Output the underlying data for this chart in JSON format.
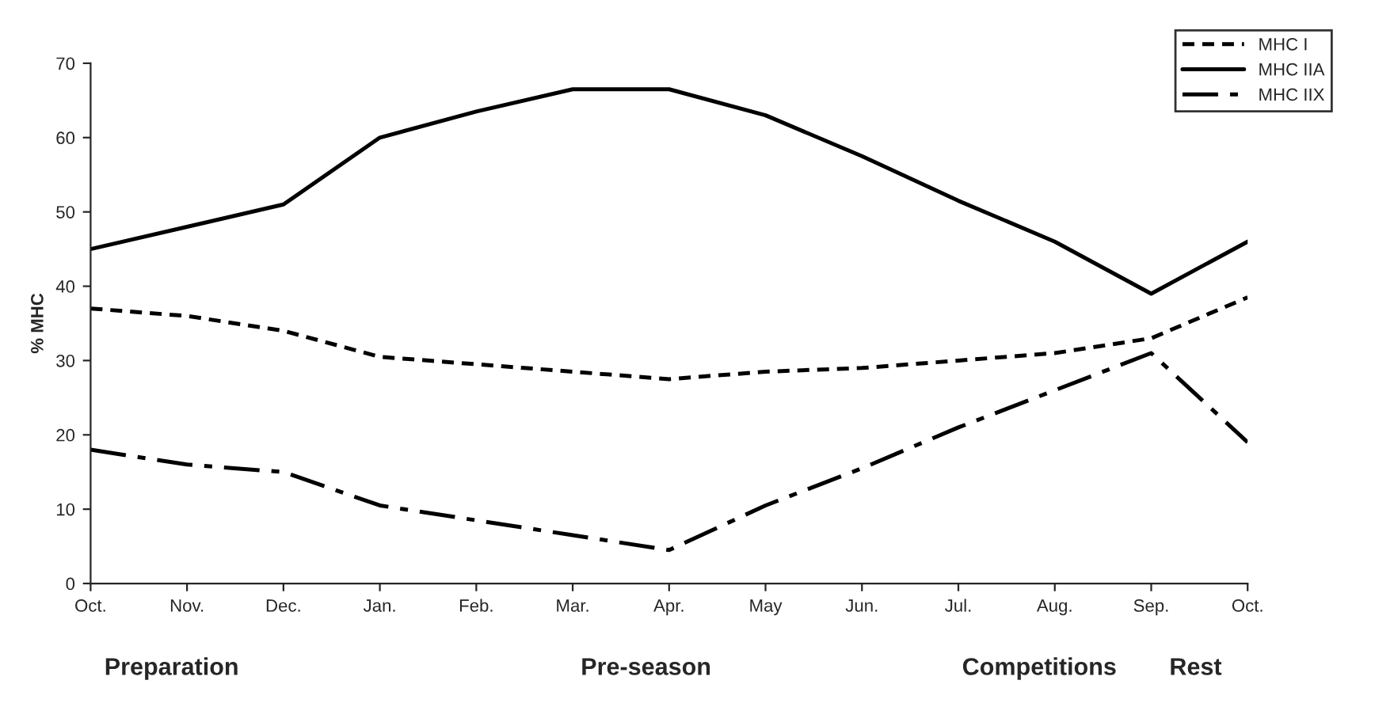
{
  "chart_data": {
    "type": "line",
    "ylabel": "% MHC",
    "categories": [
      "Oct.",
      "Nov.",
      "Dec.",
      "Jan.",
      "Feb.",
      "Mar.",
      "Apr.",
      "May",
      "Jun.",
      "Jul.",
      "Aug.",
      "Sep.",
      "Oct."
    ],
    "series": [
      {
        "name": "MHC I",
        "color": "#000000",
        "line_style": "dotted",
        "values": [
          37,
          36,
          34,
          30.5,
          29.5,
          28.5,
          27.5,
          28.5,
          29,
          30,
          31,
          33,
          38.5
        ]
      },
      {
        "name": "MHC IIA",
        "color": "#000000",
        "line_style": "solid",
        "values": [
          45,
          48,
          51,
          60,
          63.5,
          66.5,
          66.5,
          63,
          57.5,
          51.5,
          46,
          39,
          46
        ]
      },
      {
        "name": "MHC IIX",
        "color": "#000000",
        "line_style": "dashed",
        "values": [
          18,
          16,
          15,
          10.5,
          8.5,
          6.5,
          4.5,
          10.5,
          15.5,
          21,
          26,
          31,
          19
        ]
      }
    ],
    "ylim": [
      0,
      70
    ],
    "yticks": [
      0,
      10,
      20,
      30,
      40,
      50,
      60,
      70
    ],
    "annotations": [
      "Preparation",
      "Pre-season",
      "Competitions",
      "Rest"
    ],
    "grid": false,
    "legend": "top right",
    "marker": "none"
  }
}
